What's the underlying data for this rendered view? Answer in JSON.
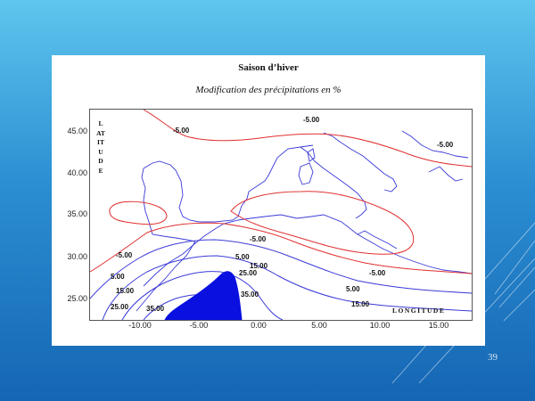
{
  "slide": {
    "page_number": "39",
    "background_top": "#5ec6ee",
    "background_bottom": "#1566b4"
  },
  "figure": {
    "title": "Saison d’hiver",
    "subtitle": "Modification des précipitations en %",
    "y_axis_label": "LATITUDE",
    "x_axis_label": "LONGITUDE",
    "y_ticks": [
      "45.00",
      "40.00",
      "35.00",
      "30.00",
      "25.00"
    ],
    "x_ticks": [
      "-10.00",
      "-5.00",
      "0.00",
      "5.00",
      "10.00",
      "15.00"
    ],
    "contour_labels": {
      "neg_nw": "-5.00",
      "neg_ne": "-5.00",
      "neg_east": "-5.00",
      "neg_central": "-5.00",
      "neg_sw": "-5.00",
      "neg_se": "-5.00",
      "p5_west": "5.00",
      "p5_central": "5.00",
      "p5_east": "5.00",
      "p15_west": "15.00",
      "p15_central": "15.00",
      "p15_east": "15.00",
      "p25_west": "25.00",
      "p25_central": "25.00",
      "p35_west": "35.00",
      "p35_central": "35.00"
    },
    "colors": {
      "coastline": "#3a3ad8",
      "negative_contour": "#e03030",
      "positive_contour": "#3a3ad8",
      "max_fill": "#0a10e0"
    }
  }
}
